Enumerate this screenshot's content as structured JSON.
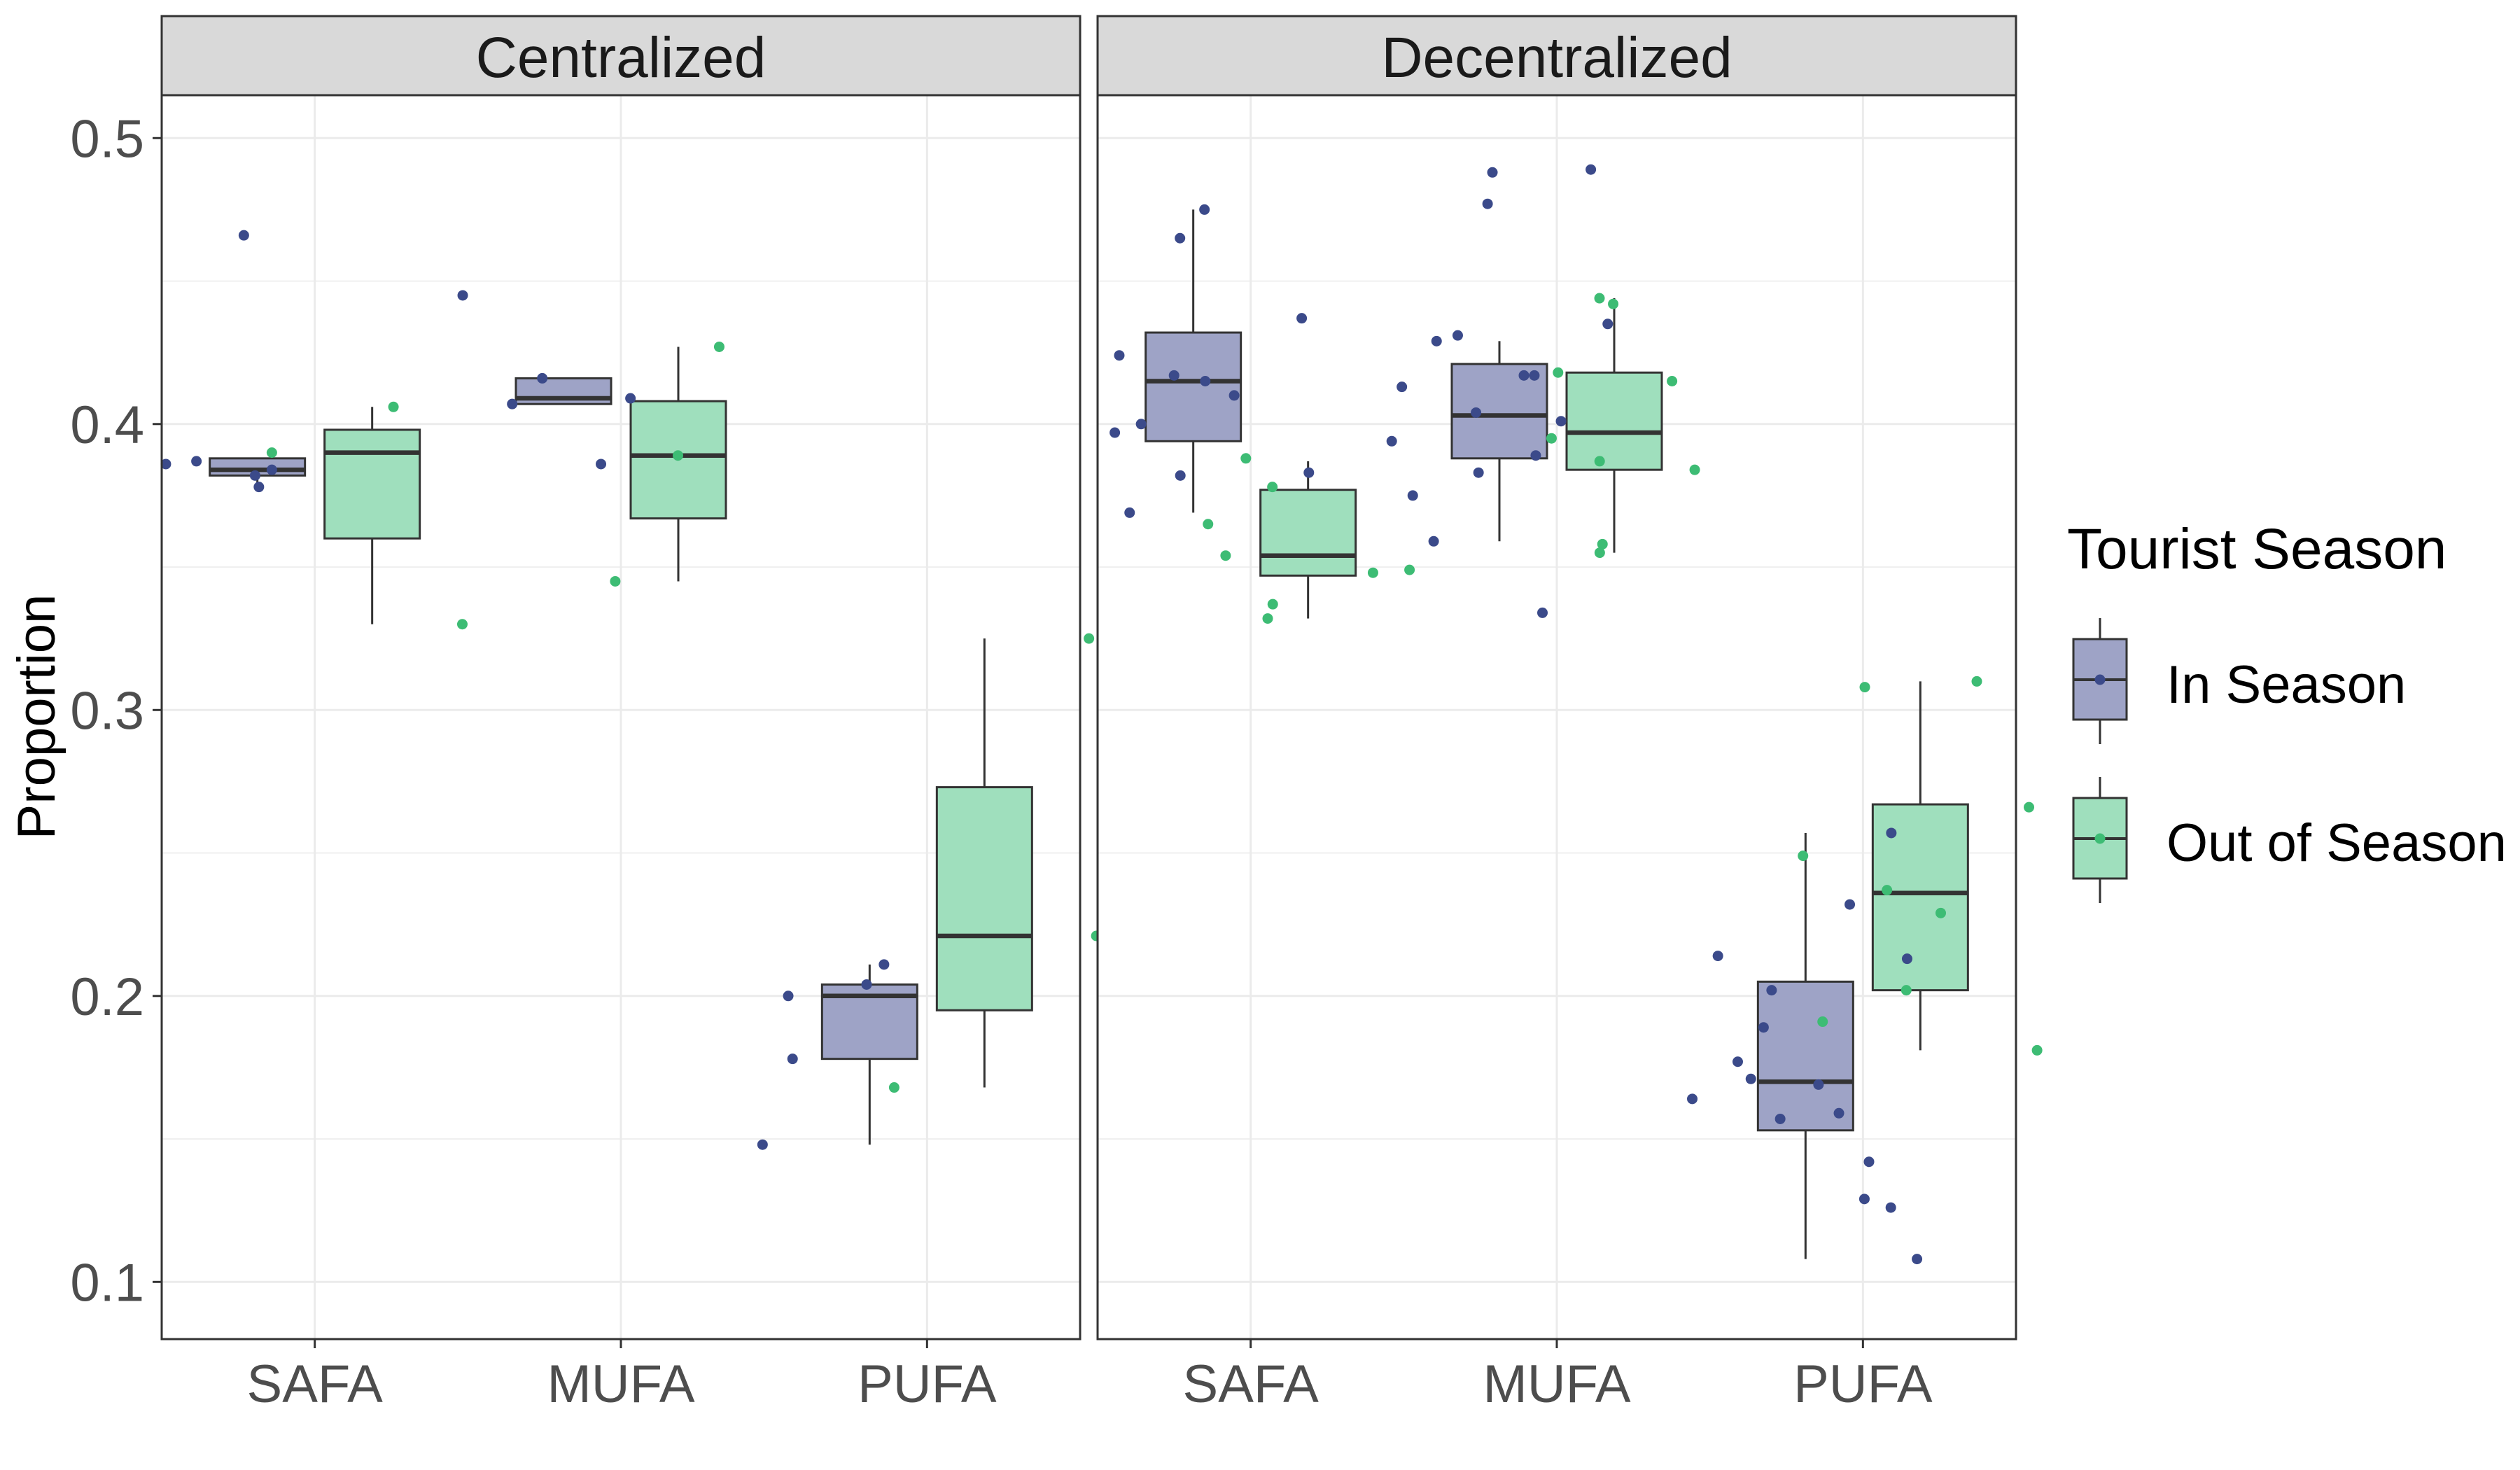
{
  "chart_data": {
    "type": "boxplot",
    "ylabel": "Proportion",
    "xlabel": "",
    "ylim": [
      0.08,
      0.515
    ],
    "yticks": [
      0.1,
      0.2,
      0.3,
      0.4,
      0.5
    ],
    "ytick_labels": [
      "0.1",
      "0.2",
      "0.3",
      "0.4",
      "0.5"
    ],
    "categories": [
      "SAFA",
      "MUFA",
      "PUFA"
    ],
    "legend": {
      "title": "Tourist Season",
      "position": "right",
      "entries": [
        {
          "key": "in",
          "label": "In Season",
          "fill": "#9ea3c6",
          "point": "#3b4a8a"
        },
        {
          "key": "out",
          "label": "Out of Season",
          "fill": "#9fdfbd",
          "point": "#3dbc74"
        }
      ]
    },
    "facets": [
      {
        "title": "Centralized",
        "groups": [
          {
            "category": "SAFA",
            "series": "in",
            "q1": 0.382,
            "median": 0.384,
            "q3": 0.388,
            "whisker_low": 0.379,
            "whisker_high": 0.388,
            "points": [
              0.382,
              0.384,
              0.386,
              0.387,
              0.466,
              0.378
            ]
          },
          {
            "category": "SAFA",
            "series": "out",
            "q1": 0.36,
            "median": 0.39,
            "q3": 0.398,
            "whisker_low": 0.33,
            "whisker_high": 0.406,
            "points": [
              0.39,
              0.33,
              0.406
            ]
          },
          {
            "category": "MUFA",
            "series": "in",
            "q1": 0.407,
            "median": 0.409,
            "q3": 0.416,
            "whisker_low": 0.407,
            "whisker_high": 0.416,
            "points": [
              0.416,
              0.407,
              0.409,
              0.386,
              0.445
            ]
          },
          {
            "category": "MUFA",
            "series": "out",
            "q1": 0.367,
            "median": 0.389,
            "q3": 0.408,
            "whisker_low": 0.345,
            "whisker_high": 0.427,
            "points": [
              0.389,
              0.345,
              0.427
            ]
          },
          {
            "category": "PUFA",
            "series": "in",
            "q1": 0.178,
            "median": 0.2,
            "q3": 0.204,
            "whisker_low": 0.148,
            "whisker_high": 0.211,
            "points": [
              0.2,
              0.211,
              0.204,
              0.178,
              0.148
            ]
          },
          {
            "category": "PUFA",
            "series": "out",
            "q1": 0.195,
            "median": 0.221,
            "q3": 0.273,
            "whisker_low": 0.168,
            "whisker_high": 0.325,
            "points": [
              0.325,
              0.221,
              0.168
            ]
          }
        ]
      },
      {
        "title": "Decentralized",
        "groups": [
          {
            "category": "SAFA",
            "series": "in",
            "q1": 0.394,
            "median": 0.415,
            "q3": 0.432,
            "whisker_low": 0.369,
            "whisker_high": 0.475,
            "points": [
              0.465,
              0.437,
              0.424,
              0.417,
              0.415,
              0.41,
              0.4,
              0.397,
              0.383,
              0.382,
              0.369,
              0.475
            ]
          },
          {
            "category": "SAFA",
            "series": "out",
            "q1": 0.347,
            "median": 0.354,
            "q3": 0.377,
            "whisker_low": 0.332,
            "whisker_high": 0.387,
            "points": [
              0.332,
              0.354,
              0.348,
              0.337,
              0.378,
              0.365,
              0.349,
              0.388
            ]
          },
          {
            "category": "MUFA",
            "series": "in",
            "q1": 0.388,
            "median": 0.403,
            "q3": 0.421,
            "whisker_low": 0.359,
            "whisker_high": 0.429,
            "points": [
              0.489,
              0.488,
              0.429,
              0.417,
              0.404,
              0.401,
              0.389,
              0.375,
              0.359,
              0.477,
              0.413,
              0.394,
              0.383,
              0.334,
              0.417,
              0.435,
              0.431
            ]
          },
          {
            "category": "MUFA",
            "series": "out",
            "q1": 0.384,
            "median": 0.397,
            "q3": 0.418,
            "whisker_low": 0.355,
            "whisker_high": 0.444,
            "points": [
              0.444,
              0.442,
              0.387,
              0.384,
              0.358,
              0.355,
              0.418,
              0.395,
              0.415
            ]
          },
          {
            "category": "PUFA",
            "series": "in",
            "q1": 0.153,
            "median": 0.17,
            "q3": 0.205,
            "whisker_low": 0.108,
            "whisker_high": 0.257,
            "points": [
              0.214,
              0.171,
              0.142,
              0.126,
              0.108,
              0.213,
              0.257,
              0.129,
              0.159,
              0.169,
              0.164,
              0.189,
              0.202,
              0.177,
              0.157,
              0.232
            ]
          },
          {
            "category": "PUFA",
            "series": "out",
            "q1": 0.202,
            "median": 0.236,
            "q3": 0.267,
            "whisker_low": 0.181,
            "whisker_high": 0.31,
            "points": [
              0.31,
              0.308,
              0.266,
              0.249,
              0.237,
              0.229,
              0.202,
              0.191,
              0.181
            ]
          }
        ]
      }
    ]
  }
}
